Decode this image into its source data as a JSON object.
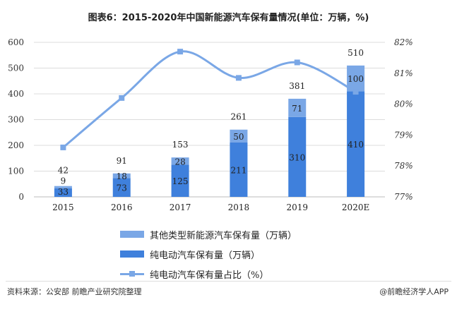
{
  "title": "图表6：2015-2020年中国新能源汽车保有量情况(单位：万辆，%)",
  "footer": {
    "source": "资料来源：公安部 前瞻产业研究院整理",
    "brand": "@前瞻经济学人APP"
  },
  "colors": {
    "ev": "#3f80dc",
    "other": "#7aa7e6",
    "line": "#7aa7e6"
  },
  "chart_data": {
    "type": "bar+line",
    "categories": [
      "2015",
      "2016",
      "2017",
      "2018",
      "2019",
      "2020E"
    ],
    "left_axis": {
      "ylim": [
        0,
        600
      ],
      "ticks": [
        "0",
        "100",
        "200",
        "300",
        "400",
        "500",
        "600"
      ]
    },
    "right_axis": {
      "ylim": [
        77,
        82
      ],
      "ticks": [
        "77%",
        "78%",
        "79%",
        "80%",
        "81%",
        "82%"
      ]
    },
    "grid": true,
    "legend_placement": "bottom",
    "series": [
      {
        "name": "纯电动汽车保有量（万辆）",
        "type": "bar",
        "stack": "total",
        "values": [
          33,
          73,
          125,
          211,
          310,
          410
        ]
      },
      {
        "name": "其他类型新能源汽车保有量（万辆）",
        "type": "bar",
        "stack": "total",
        "values": [
          9,
          18,
          28,
          50,
          71,
          100
        ]
      },
      {
        "name": "纯电动汽车保有量占比（%）",
        "type": "line",
        "axis": "right",
        "values": [
          78.6,
          80.2,
          81.7,
          80.85,
          81.35,
          80.4
        ]
      }
    ],
    "totals": [
      42,
      91,
      153,
      261,
      381,
      510
    ]
  }
}
